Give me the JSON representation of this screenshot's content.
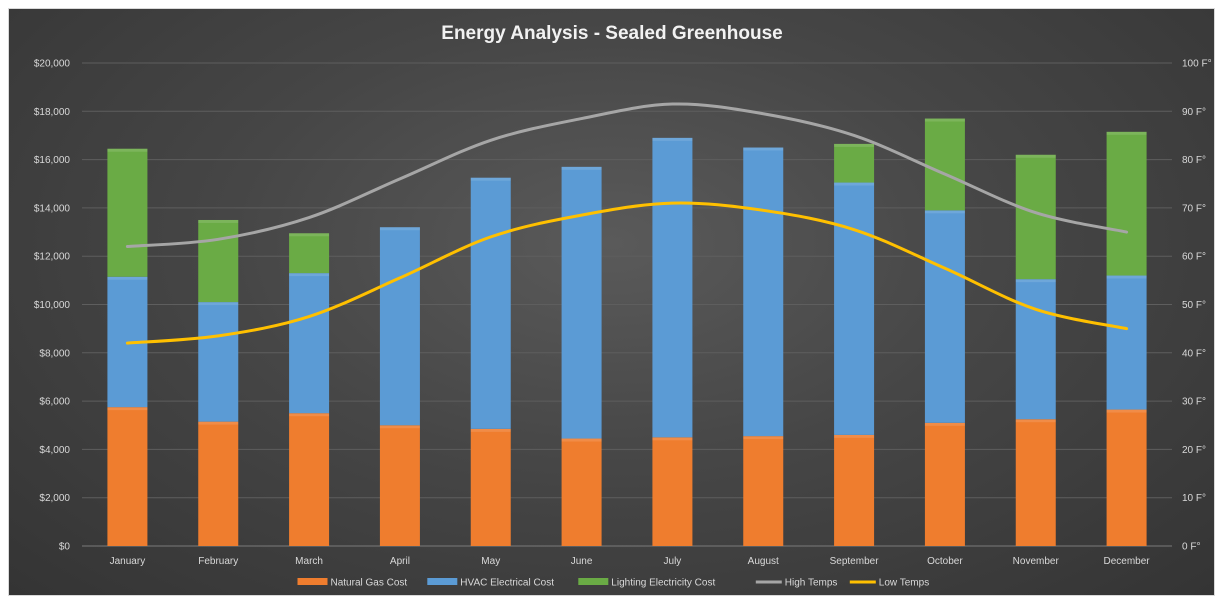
{
  "colors": {
    "natural_gas": "#ef7d2e",
    "hvac": "#5b9bd5",
    "lighting": "#6aab45",
    "high_temps": "#a6a6a6",
    "low_temps": "#ffc000",
    "gridline": "#5e5e5e",
    "axis_text": "#d9d9d9"
  },
  "chart_data": {
    "type": "bar",
    "title": "Energy Analysis - Sealed Greenhouse",
    "categories": [
      "January",
      "February",
      "March",
      "April",
      "May",
      "June",
      "July",
      "August",
      "September",
      "October",
      "November",
      "December"
    ],
    "stacked": true,
    "ylim": [
      0,
      20000
    ],
    "y2lim": [
      0,
      100
    ],
    "yticks": [
      "$0",
      "$2,000",
      "$4,000",
      "$6,000",
      "$8,000",
      "$10,000",
      "$12,000",
      "$14,000",
      "$16,000",
      "$18,000",
      "$20,000"
    ],
    "y2ticks": [
      "0 F°",
      "10 F°",
      "20 F°",
      "30 F°",
      "40 F°",
      "50 F°",
      "60 F°",
      "70 F°",
      "80 F°",
      "90 F°",
      "100 F°"
    ],
    "grid": true,
    "legend_position": "bottom",
    "series": [
      {
        "name": "Natural Gas Cost",
        "type": "bar",
        "axis": "left",
        "values": [
          5750,
          5150,
          5500,
          5000,
          4850,
          4450,
          4500,
          4550,
          4600,
          5100,
          5250,
          5650
        ]
      },
      {
        "name": "HVAC Electrical Cost",
        "type": "bar",
        "axis": "left",
        "values": [
          5400,
          4950,
          5800,
          8200,
          10400,
          11250,
          12400,
          11950,
          10450,
          8800,
          5800,
          5550
        ]
      },
      {
        "name": "Lighting Electricity Cost",
        "type": "bar",
        "axis": "left",
        "values": [
          5300,
          3400,
          1650,
          0,
          0,
          0,
          0,
          0,
          1600,
          3800,
          5150,
          5950
        ]
      },
      {
        "name": "High Temps",
        "type": "line",
        "axis": "right",
        "values": [
          62,
          63.5,
          68,
          76,
          84,
          88.5,
          91.5,
          89.5,
          85,
          77,
          69,
          65
        ]
      },
      {
        "name": "Low Temps",
        "type": "line",
        "axis": "right",
        "values": [
          42,
          43.5,
          47.5,
          55.5,
          64,
          68.5,
          71,
          69.5,
          65.5,
          57.5,
          49,
          45
        ]
      }
    ]
  }
}
